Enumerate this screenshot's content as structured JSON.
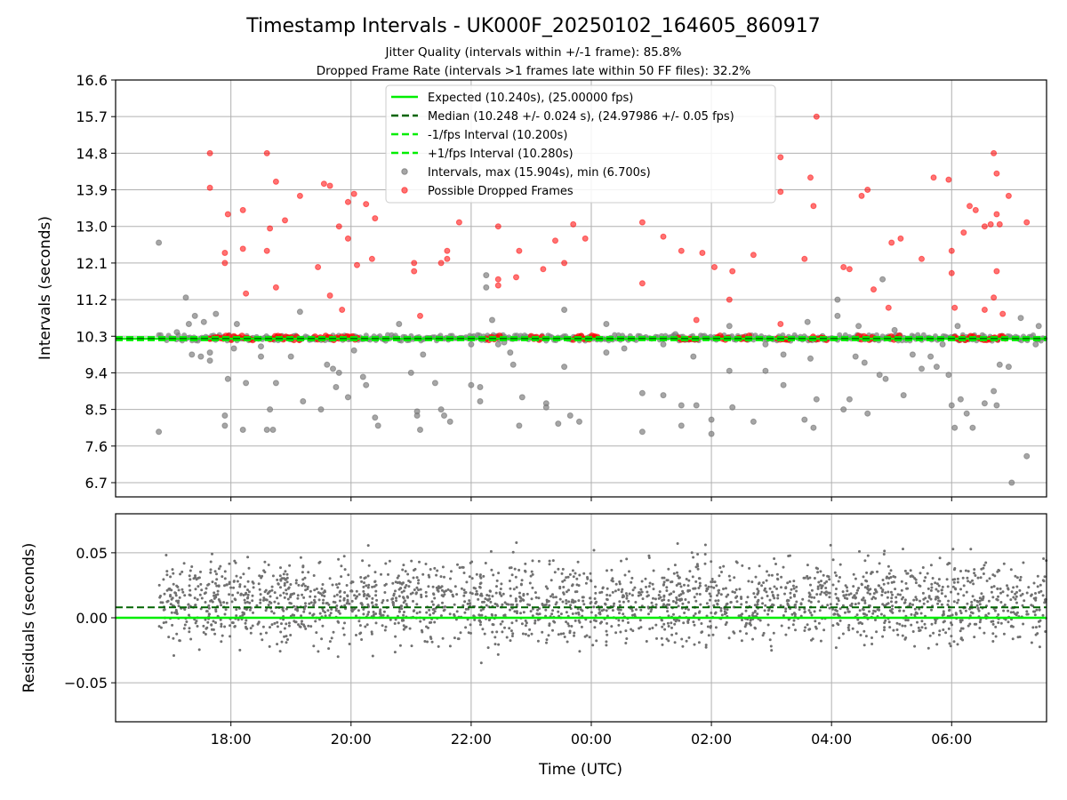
{
  "figure": {
    "title": "Timestamp Intervals - UK000F_20250102_164605_860917",
    "subtitle_1": "Jitter Quality (intervals within +/-1 frame): 85.8%",
    "subtitle_2": "Dropped Frame Rate (intervals >1 frames late within 50 FF files): 32.2%"
  },
  "colors": {
    "expected": "#00ee00",
    "median": "#006400",
    "interval": "#808080",
    "dropped": "#ff0000",
    "grid": "#b0b0b0",
    "residual": "#707070"
  },
  "chart_data": [
    {
      "type": "scatter",
      "ylabel": "Intervals (seconds)",
      "xlabel": "",
      "x_unit": "hours since 00:00 UTC (negative = previous day)",
      "xlim": [
        -7.92,
        7.58
      ],
      "ylim": [
        6.35,
        16.6
      ],
      "x_ticks": [
        {
          "x": -6,
          "label": "18:00"
        },
        {
          "x": -4,
          "label": "20:00"
        },
        {
          "x": -2,
          "label": "22:00"
        },
        {
          "x": 0,
          "label": "00:00"
        },
        {
          "x": 2,
          "label": "02:00"
        },
        {
          "x": 4,
          "label": "04:00"
        },
        {
          "x": 6,
          "label": "06:00"
        }
      ],
      "y_ticks": [
        {
          "y": 6.7,
          "label": "6.7"
        },
        {
          "y": 7.6,
          "label": "7.6"
        },
        {
          "y": 8.5,
          "label": "8.5"
        },
        {
          "y": 9.4,
          "label": "9.4"
        },
        {
          "y": 10.3,
          "label": "10.3"
        },
        {
          "y": 11.2,
          "label": "11.2"
        },
        {
          "y": 12.1,
          "label": "12.1"
        },
        {
          "y": 13.0,
          "label": "13.0"
        },
        {
          "y": 13.9,
          "label": "13.9"
        },
        {
          "y": 14.8,
          "label": "14.8"
        },
        {
          "y": 15.7,
          "label": "15.7"
        },
        {
          "y": 16.6,
          "label": "16.6"
        }
      ],
      "grid": true,
      "legend_position": "top-center",
      "legend": [
        {
          "label": "Expected (10.240s), (25.00000 fps)",
          "style": "solid",
          "color": "#00ee00"
        },
        {
          "label": "Median (10.248 +/- 0.024 s), (24.97986 +/- 0.05 fps)",
          "style": "dashed",
          "color": "#006400"
        },
        {
          "label": "-1/fps Interval (10.200s)",
          "style": "dashed",
          "color": "#00ee00"
        },
        {
          "label": "+1/fps Interval (10.280s)",
          "style": "dashed",
          "color": "#00ee00"
        },
        {
          "label": "Intervals, max (15.904s), min (6.700s)",
          "style": "marker",
          "color": "#808080"
        },
        {
          "label": "Possible Dropped Frames",
          "style": "marker",
          "color": "#ff0000"
        }
      ],
      "reference_lines": [
        {
          "name": "expected",
          "y": 10.24
        },
        {
          "name": "median",
          "y": 10.248
        },
        {
          "name": "minus_one_fps",
          "y": 10.2
        },
        {
          "name": "plus_one_fps",
          "y": 10.28
        }
      ],
      "band": {
        "x_range": [
          -7.2,
          7.58
        ],
        "y": 10.26
      },
      "dense_dropped_clusters": [
        [
          -6.35,
          -5.6
        ],
        [
          -5.35,
          -4.85
        ],
        [
          -4.6,
          -3.85
        ],
        [
          -1.75,
          -1.5
        ],
        [
          -1.0,
          -0.8
        ],
        [
          -0.3,
          0.1
        ],
        [
          1.45,
          1.8
        ],
        [
          2.1,
          2.3
        ],
        [
          2.45,
          2.65
        ],
        [
          3.1,
          3.3
        ],
        [
          3.65,
          3.95
        ],
        [
          4.45,
          4.75
        ],
        [
          4.95,
          5.15
        ],
        [
          6.05,
          6.4
        ],
        [
          6.45,
          6.9
        ]
      ],
      "dropped_outliers": [
        [
          -6.35,
          14.8
        ],
        [
          -6.35,
          13.95
        ],
        [
          -6.1,
          12.1
        ],
        [
          -6.1,
          12.35
        ],
        [
          -6.05,
          13.3
        ],
        [
          -5.8,
          13.4
        ],
        [
          -5.8,
          12.45
        ],
        [
          -5.75,
          11.35
        ],
        [
          -5.4,
          14.8
        ],
        [
          -5.4,
          12.4
        ],
        [
          -5.35,
          12.95
        ],
        [
          -5.25,
          14.1
        ],
        [
          -5.25,
          11.5
        ],
        [
          -5.1,
          13.15
        ],
        [
          -4.85,
          13.75
        ],
        [
          -4.55,
          12.0
        ],
        [
          -4.45,
          14.05
        ],
        [
          -4.35,
          14.0
        ],
        [
          -4.35,
          11.3
        ],
        [
          -4.2,
          13.0
        ],
        [
          -4.15,
          10.95
        ],
        [
          -4.05,
          13.6
        ],
        [
          -4.05,
          12.7
        ],
        [
          -3.95,
          13.8
        ],
        [
          -3.9,
          12.05
        ],
        [
          -3.75,
          13.55
        ],
        [
          -3.65,
          12.2
        ],
        [
          -3.6,
          13.2
        ],
        [
          -2.95,
          11.9
        ],
        [
          -2.95,
          12.1
        ],
        [
          -2.85,
          10.8
        ],
        [
          -2.5,
          12.1
        ],
        [
          -2.4,
          12.2
        ],
        [
          -2.4,
          12.4
        ],
        [
          -2.2,
          13.1
        ],
        [
          -1.55,
          13.0
        ],
        [
          -1.55,
          11.7
        ],
        [
          -1.55,
          11.55
        ],
        [
          -1.25,
          11.75
        ],
        [
          -1.2,
          12.4
        ],
        [
          -0.8,
          11.95
        ],
        [
          -0.6,
          12.65
        ],
        [
          -0.45,
          12.1
        ],
        [
          -0.3,
          13.05
        ],
        [
          -0.1,
          12.7
        ],
        [
          0.85,
          13.1
        ],
        [
          0.85,
          11.6
        ],
        [
          1.2,
          12.75
        ],
        [
          1.5,
          12.4
        ],
        [
          1.75,
          10.7
        ],
        [
          1.85,
          12.35
        ],
        [
          2.05,
          12.0
        ],
        [
          2.3,
          11.2
        ],
        [
          2.35,
          11.9
        ],
        [
          2.7,
          12.3
        ],
        [
          3.15,
          14.7
        ],
        [
          3.15,
          13.85
        ],
        [
          3.15,
          10.6
        ],
        [
          3.55,
          12.2
        ],
        [
          3.65,
          14.2
        ],
        [
          3.7,
          13.5
        ],
        [
          3.75,
          15.7
        ],
        [
          4.2,
          12.0
        ],
        [
          4.3,
          11.95
        ],
        [
          4.5,
          13.75
        ],
        [
          4.6,
          13.9
        ],
        [
          4.7,
          11.45
        ],
        [
          4.95,
          11.0
        ],
        [
          5.0,
          12.6
        ],
        [
          5.15,
          12.7
        ],
        [
          5.5,
          12.2
        ],
        [
          5.7,
          14.2
        ],
        [
          5.95,
          14.15
        ],
        [
          6.0,
          12.4
        ],
        [
          6.0,
          11.85
        ],
        [
          6.05,
          11.0
        ],
        [
          6.2,
          12.85
        ],
        [
          6.3,
          13.5
        ],
        [
          6.4,
          13.4
        ],
        [
          6.55,
          13.0
        ],
        [
          6.65,
          13.05
        ],
        [
          6.7,
          14.8
        ],
        [
          6.75,
          14.3
        ],
        [
          6.75,
          13.3
        ],
        [
          6.75,
          11.9
        ],
        [
          6.8,
          13.05
        ],
        [
          6.85,
          10.85
        ],
        [
          6.95,
          13.75
        ],
        [
          7.25,
          13.1
        ],
        [
          6.55,
          10.95
        ],
        [
          6.7,
          11.25
        ]
      ],
      "interval_outliers": [
        [
          -7.2,
          12.6
        ],
        [
          -7.2,
          7.95
        ],
        [
          -6.75,
          11.25
        ],
        [
          -6.7,
          10.6
        ],
        [
          -6.65,
          9.85
        ],
        [
          -6.6,
          10.8
        ],
        [
          -6.5,
          9.8
        ],
        [
          -6.45,
          10.65
        ],
        [
          -6.35,
          9.9
        ],
        [
          -6.35,
          9.7
        ],
        [
          -6.25,
          10.85
        ],
        [
          -6.1,
          8.35
        ],
        [
          -6.1,
          8.1
        ],
        [
          -6.05,
          9.25
        ],
        [
          -5.9,
          10.6
        ],
        [
          -5.8,
          8.0
        ],
        [
          -5.75,
          9.15
        ],
        [
          -5.5,
          10.05
        ],
        [
          -5.5,
          9.8
        ],
        [
          -5.4,
          8.0
        ],
        [
          -5.35,
          8.5
        ],
        [
          -5.3,
          8.0
        ],
        [
          -5.25,
          9.15
        ],
        [
          -5.0,
          9.8
        ],
        [
          -4.85,
          10.9
        ],
        [
          -4.8,
          8.7
        ],
        [
          -4.5,
          8.5
        ],
        [
          -4.4,
          9.6
        ],
        [
          -4.3,
          9.5
        ],
        [
          -4.25,
          9.05
        ],
        [
          -4.2,
          9.4
        ],
        [
          -4.05,
          8.8
        ],
        [
          -3.95,
          9.95
        ],
        [
          -3.8,
          9.3
        ],
        [
          -3.75,
          9.1
        ],
        [
          -3.6,
          8.3
        ],
        [
          -3.55,
          8.1
        ],
        [
          -3.2,
          10.6
        ],
        [
          -3.0,
          9.4
        ],
        [
          -2.9,
          8.45
        ],
        [
          -2.9,
          8.35
        ],
        [
          -2.85,
          8.0
        ],
        [
          -2.8,
          9.85
        ],
        [
          -2.6,
          9.15
        ],
        [
          -2.5,
          8.5
        ],
        [
          -2.45,
          8.35
        ],
        [
          -2.35,
          8.2
        ],
        [
          -2.0,
          9.1
        ],
        [
          -1.85,
          8.7
        ],
        [
          -1.85,
          9.05
        ],
        [
          -1.75,
          11.8
        ],
        [
          -1.75,
          11.5
        ],
        [
          -1.65,
          10.7
        ],
        [
          -1.55,
          10.1
        ],
        [
          -1.45,
          10.15
        ],
        [
          -1.35,
          9.9
        ],
        [
          -1.3,
          9.6
        ],
        [
          -1.2,
          8.1
        ],
        [
          -1.15,
          8.8
        ],
        [
          -0.75,
          8.65
        ],
        [
          -0.75,
          8.55
        ],
        [
          -0.55,
          8.15
        ],
        [
          -0.45,
          9.55
        ],
        [
          -0.45,
          10.95
        ],
        [
          -0.35,
          8.35
        ],
        [
          -0.2,
          8.2
        ],
        [
          0.25,
          10.6
        ],
        [
          0.25,
          9.9
        ],
        [
          0.85,
          8.9
        ],
        [
          0.85,
          7.95
        ],
        [
          1.2,
          10.1
        ],
        [
          1.2,
          8.85
        ],
        [
          1.4,
          10.35
        ],
        [
          1.5,
          8.6
        ],
        [
          1.5,
          8.1
        ],
        [
          1.7,
          9.8
        ],
        [
          1.75,
          8.6
        ],
        [
          2.0,
          8.25
        ],
        [
          2.0,
          7.9
        ],
        [
          2.3,
          10.55
        ],
        [
          2.3,
          9.45
        ],
        [
          2.35,
          8.55
        ],
        [
          2.7,
          8.2
        ],
        [
          2.9,
          9.45
        ],
        [
          3.2,
          9.85
        ],
        [
          3.2,
          9.1
        ],
        [
          3.55,
          8.25
        ],
        [
          3.6,
          10.65
        ],
        [
          3.65,
          9.75
        ],
        [
          3.7,
          8.05
        ],
        [
          3.75,
          8.75
        ],
        [
          3.85,
          10.3
        ],
        [
          4.1,
          11.2
        ],
        [
          4.1,
          10.8
        ],
        [
          4.2,
          8.5
        ],
        [
          4.3,
          8.75
        ],
        [
          4.4,
          9.8
        ],
        [
          4.45,
          10.55
        ],
        [
          4.55,
          9.65
        ],
        [
          4.6,
          8.4
        ],
        [
          4.8,
          9.35
        ],
        [
          4.85,
          11.7
        ],
        [
          4.9,
          9.25
        ],
        [
          5.05,
          10.45
        ],
        [
          5.2,
          8.85
        ],
        [
          5.35,
          9.85
        ],
        [
          5.5,
          9.5
        ],
        [
          5.65,
          9.8
        ],
        [
          5.75,
          9.55
        ],
        [
          5.85,
          10.1
        ],
        [
          5.95,
          9.35
        ],
        [
          6.0,
          8.6
        ],
        [
          6.05,
          8.05
        ],
        [
          6.1,
          10.55
        ],
        [
          6.15,
          8.75
        ],
        [
          6.25,
          8.4
        ],
        [
          6.35,
          8.05
        ],
        [
          6.55,
          8.65
        ],
        [
          6.7,
          8.95
        ],
        [
          6.75,
          8.6
        ],
        [
          6.8,
          9.6
        ],
        [
          6.95,
          9.55
        ],
        [
          7.15,
          10.75
        ],
        [
          7.25,
          7.35
        ],
        [
          7.0,
          6.7
        ],
        [
          7.45,
          10.55
        ],
        [
          7.4,
          10.1
        ],
        [
          -6.9,
          10.4
        ],
        [
          -5.95,
          10.0
        ],
        [
          -2.0,
          10.1
        ],
        [
          0.55,
          10.0
        ],
        [
          2.9,
          10.1
        ]
      ]
    },
    {
      "type": "scatter",
      "ylabel": "Residuals (seconds)",
      "xlabel": "Time (UTC)",
      "xlim": [
        -7.92,
        7.58
      ],
      "ylim": [
        -0.08,
        0.08
      ],
      "y_ticks": [
        {
          "y": -0.05,
          "label": "−0.05"
        },
        {
          "y": 0.0,
          "label": "0.00"
        },
        {
          "y": 0.05,
          "label": "0.05"
        }
      ],
      "grid": true,
      "reference_lines": [
        {
          "name": "expected_residual",
          "y": 0.0
        },
        {
          "name": "median_residual",
          "y": 0.008
        }
      ],
      "residual_points": {
        "x_range": [
          -7.2,
          7.58
        ],
        "center": 0.012,
        "spread": 0.022,
        "count": 2400,
        "clip": 0.08
      }
    }
  ]
}
